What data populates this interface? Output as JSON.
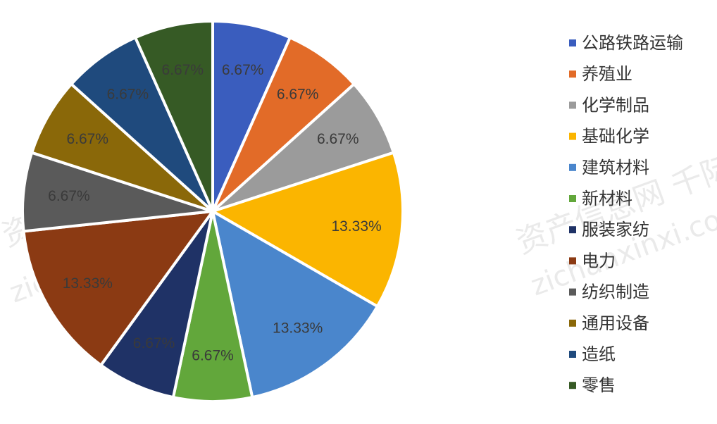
{
  "chart_data": {
    "type": "pie",
    "title": "",
    "slices": [
      {
        "name": "公路铁路运输",
        "value": 6.67,
        "label": "6.67%",
        "color": "#3a5dbe"
      },
      {
        "name": "养殖业",
        "value": 6.67,
        "label": "6.67%",
        "color": "#e26b28"
      },
      {
        "name": "化学制品",
        "value": 6.67,
        "label": "6.67%",
        "color": "#9b9b9b"
      },
      {
        "name": "基础化学",
        "value": 13.33,
        "label": "13.33%",
        "color": "#fbb500"
      },
      {
        "name": "建筑材料",
        "value": 13.33,
        "label": "13.33%",
        "color": "#4a86cc"
      },
      {
        "name": "新材料",
        "value": 6.67,
        "label": "6.67%",
        "color": "#62a73b"
      },
      {
        "name": "服装家纺",
        "value": 6.67,
        "label": "6.67%",
        "color": "#1f3266"
      },
      {
        "name": "电力",
        "value": 13.33,
        "label": "13.33%",
        "color": "#8b3a13"
      },
      {
        "name": "纺织制造",
        "value": 6.67,
        "label": "6.67%",
        "color": "#5a5a5a"
      },
      {
        "name": "通用设备",
        "value": 6.67,
        "label": "6.67%",
        "color": "#8a6809"
      },
      {
        "name": "造纸",
        "value": 6.67,
        "label": "6.67%",
        "color": "#1f4a7d"
      },
      {
        "name": "零售",
        "value": 6.67,
        "label": "6.67%",
        "color": "#365a25"
      }
    ],
    "legend_position": "right"
  },
  "watermark": {
    "text_cn": "资产信息网 千际投行",
    "text_en": "zichanxinxi.com"
  }
}
